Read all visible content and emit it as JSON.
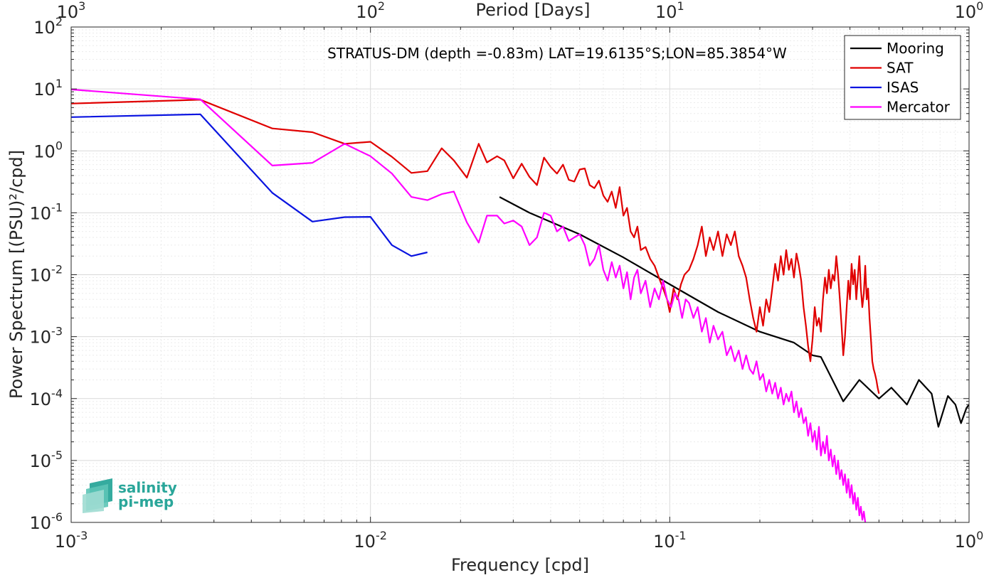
{
  "chart_data": {
    "type": "line",
    "title": "STRATUS-DM (depth =-0.83m) LAT=19.6135°S;LON=85.3854°W",
    "xlabel": "Frequency [cpd]",
    "ylabel": "Power Spectrum [(PSU)²/cpd]",
    "top_axis_label": "Period [Days]",
    "x_scale": "log",
    "y_scale": "log",
    "xlim": [
      0.001,
      1
    ],
    "ylim": [
      1e-06,
      100
    ],
    "grid": true,
    "legend_position": "top-right",
    "x_ticks": [
      {
        "base": "10",
        "exp": "-3"
      },
      {
        "base": "10",
        "exp": "-2"
      },
      {
        "base": "10",
        "exp": "-1"
      },
      {
        "base": "10",
        "exp": "0"
      }
    ],
    "top_ticks": [
      {
        "base": "10",
        "exp": "3"
      },
      {
        "base": "10",
        "exp": "2"
      },
      {
        "base": "10",
        "exp": "1"
      },
      {
        "base": "10",
        "exp": "0"
      }
    ],
    "y_ticks": [
      {
        "base": "10",
        "exp": "2"
      },
      {
        "base": "10",
        "exp": "1"
      },
      {
        "base": "10",
        "exp": "0"
      },
      {
        "base": "10",
        "exp": "-1"
      },
      {
        "base": "10",
        "exp": "-2"
      },
      {
        "base": "10",
        "exp": "-3"
      },
      {
        "base": "10",
        "exp": "-4"
      },
      {
        "base": "10",
        "exp": "-5"
      },
      {
        "base": "10",
        "exp": "-6"
      }
    ],
    "series": [
      {
        "name": "Mooring",
        "color": "#000000",
        "points": [
          [
            0.027,
            0.18
          ],
          [
            0.034,
            0.1
          ],
          [
            0.05,
            0.045
          ],
          [
            0.07,
            0.019
          ],
          [
            0.1,
            0.007
          ],
          [
            0.145,
            0.0025
          ],
          [
            0.2,
            0.0012
          ],
          [
            0.26,
            0.0008
          ],
          [
            0.3,
            0.0005
          ],
          [
            0.32,
            0.00047
          ],
          [
            0.38,
            9e-05
          ],
          [
            0.43,
            0.0002
          ],
          [
            0.5,
            0.0001
          ],
          [
            0.55,
            0.00015
          ],
          [
            0.62,
            8e-05
          ],
          [
            0.68,
            0.0002
          ],
          [
            0.75,
            0.00012
          ],
          [
            0.79,
            3.5e-05
          ],
          [
            0.85,
            0.00011
          ],
          [
            0.9,
            8e-05
          ],
          [
            0.94,
            4e-05
          ],
          [
            0.98,
            7e-05
          ],
          [
            1.0,
            8e-05
          ]
        ]
      },
      {
        "name": "SAT",
        "color": "#e00000",
        "points": [
          [
            0.001,
            5.8
          ],
          [
            0.0027,
            6.7
          ],
          [
            0.0047,
            2.3
          ],
          [
            0.0064,
            2.0
          ],
          [
            0.0082,
            1.3
          ],
          [
            0.01,
            1.4
          ],
          [
            0.0118,
            0.8
          ],
          [
            0.0137,
            0.44
          ],
          [
            0.0155,
            0.47
          ],
          [
            0.0173,
            1.1
          ],
          [
            0.019,
            0.7
          ],
          [
            0.021,
            0.37
          ],
          [
            0.023,
            1.3
          ],
          [
            0.0245,
            0.65
          ],
          [
            0.0265,
            0.82
          ],
          [
            0.028,
            0.7
          ],
          [
            0.03,
            0.36
          ],
          [
            0.032,
            0.62
          ],
          [
            0.034,
            0.38
          ],
          [
            0.036,
            0.28
          ],
          [
            0.038,
            0.78
          ],
          [
            0.04,
            0.55
          ],
          [
            0.042,
            0.43
          ],
          [
            0.044,
            0.6
          ],
          [
            0.046,
            0.34
          ],
          [
            0.048,
            0.32
          ],
          [
            0.05,
            0.5
          ],
          [
            0.052,
            0.52
          ],
          [
            0.054,
            0.28
          ],
          [
            0.056,
            0.25
          ],
          [
            0.058,
            0.33
          ],
          [
            0.06,
            0.19
          ],
          [
            0.062,
            0.15
          ],
          [
            0.064,
            0.22
          ],
          [
            0.066,
            0.12
          ],
          [
            0.068,
            0.26
          ],
          [
            0.07,
            0.09
          ],
          [
            0.072,
            0.12
          ],
          [
            0.074,
            0.05
          ],
          [
            0.076,
            0.04
          ],
          [
            0.078,
            0.06
          ],
          [
            0.08,
            0.025
          ],
          [
            0.083,
            0.028
          ],
          [
            0.086,
            0.018
          ],
          [
            0.089,
            0.014
          ],
          [
            0.092,
            0.009
          ],
          [
            0.095,
            0.006
          ],
          [
            0.098,
            0.004
          ],
          [
            0.1,
            0.0025
          ],
          [
            0.103,
            0.006
          ],
          [
            0.106,
            0.004
          ],
          [
            0.109,
            0.007
          ],
          [
            0.112,
            0.01
          ],
          [
            0.116,
            0.012
          ],
          [
            0.12,
            0.018
          ],
          [
            0.124,
            0.03
          ],
          [
            0.128,
            0.06
          ],
          [
            0.132,
            0.02
          ],
          [
            0.136,
            0.04
          ],
          [
            0.14,
            0.025
          ],
          [
            0.145,
            0.05
          ],
          [
            0.15,
            0.02
          ],
          [
            0.155,
            0.045
          ],
          [
            0.16,
            0.03
          ],
          [
            0.165,
            0.05
          ],
          [
            0.17,
            0.02
          ],
          [
            0.175,
            0.014
          ],
          [
            0.18,
            0.009
          ],
          [
            0.185,
            0.004
          ],
          [
            0.19,
            0.002
          ],
          [
            0.195,
            0.0012
          ],
          [
            0.2,
            0.003
          ],
          [
            0.205,
            0.0015
          ],
          [
            0.21,
            0.004
          ],
          [
            0.215,
            0.0025
          ],
          [
            0.22,
            0.006
          ],
          [
            0.225,
            0.015
          ],
          [
            0.23,
            0.008
          ],
          [
            0.235,
            0.02
          ],
          [
            0.24,
            0.01
          ],
          [
            0.245,
            0.025
          ],
          [
            0.25,
            0.012
          ],
          [
            0.255,
            0.018
          ],
          [
            0.26,
            0.009
          ],
          [
            0.265,
            0.022
          ],
          [
            0.27,
            0.014
          ],
          [
            0.275,
            0.008
          ],
          [
            0.28,
            0.003
          ],
          [
            0.285,
            0.0015
          ],
          [
            0.29,
            0.0007
          ],
          [
            0.295,
            0.0004
          ],
          [
            0.3,
            0.0009
          ],
          [
            0.305,
            0.003
          ],
          [
            0.31,
            0.0015
          ],
          [
            0.315,
            0.002
          ],
          [
            0.32,
            0.0012
          ],
          [
            0.325,
            0.004
          ],
          [
            0.33,
            0.009
          ],
          [
            0.335,
            0.005
          ],
          [
            0.34,
            0.012
          ],
          [
            0.345,
            0.006
          ],
          [
            0.35,
            0.01
          ],
          [
            0.355,
            0.008
          ],
          [
            0.36,
            0.02
          ],
          [
            0.365,
            0.01
          ],
          [
            0.37,
            0.004
          ],
          [
            0.375,
            0.0015
          ],
          [
            0.38,
            0.0005
          ],
          [
            0.385,
            0.001
          ],
          [
            0.39,
            0.003
          ],
          [
            0.395,
            0.008
          ],
          [
            0.4,
            0.004
          ],
          [
            0.405,
            0.015
          ],
          [
            0.41,
            0.007
          ],
          [
            0.415,
            0.012
          ],
          [
            0.42,
            0.004
          ],
          [
            0.425,
            0.009
          ],
          [
            0.43,
            0.02
          ],
          [
            0.435,
            0.006
          ],
          [
            0.44,
            0.003
          ],
          [
            0.445,
            0.005
          ],
          [
            0.45,
            0.014
          ],
          [
            0.455,
            0.004
          ],
          [
            0.46,
            0.006
          ],
          [
            0.465,
            0.002
          ],
          [
            0.47,
            0.0009
          ],
          [
            0.475,
            0.0004
          ],
          [
            0.48,
            0.0003
          ],
          [
            0.485,
            0.00025
          ],
          [
            0.49,
            0.0002
          ],
          [
            0.495,
            0.00015
          ],
          [
            0.5,
            0.00012
          ]
        ]
      },
      {
        "name": "ISAS",
        "color": "#0a14e0",
        "points": [
          [
            0.001,
            3.5
          ],
          [
            0.0027,
            3.9
          ],
          [
            0.0047,
            0.21
          ],
          [
            0.0064,
            0.072
          ],
          [
            0.0082,
            0.085
          ],
          [
            0.01,
            0.086
          ],
          [
            0.0118,
            0.03
          ],
          [
            0.0137,
            0.02
          ],
          [
            0.0155,
            0.023
          ]
        ]
      },
      {
        "name": "Mercator",
        "color": "#ff00ff",
        "points": [
          [
            0.001,
            9.8
          ],
          [
            0.0027,
            6.8
          ],
          [
            0.0047,
            0.58
          ],
          [
            0.0064,
            0.64
          ],
          [
            0.0082,
            1.3
          ],
          [
            0.01,
            0.82
          ],
          [
            0.0118,
            0.43
          ],
          [
            0.0137,
            0.18
          ],
          [
            0.0155,
            0.16
          ],
          [
            0.0173,
            0.2
          ],
          [
            0.019,
            0.22
          ],
          [
            0.021,
            0.07
          ],
          [
            0.023,
            0.033
          ],
          [
            0.0245,
            0.09
          ],
          [
            0.0265,
            0.09
          ],
          [
            0.028,
            0.067
          ],
          [
            0.03,
            0.075
          ],
          [
            0.032,
            0.06
          ],
          [
            0.034,
            0.03
          ],
          [
            0.036,
            0.04
          ],
          [
            0.038,
            0.1
          ],
          [
            0.04,
            0.09
          ],
          [
            0.042,
            0.05
          ],
          [
            0.044,
            0.06
          ],
          [
            0.046,
            0.035
          ],
          [
            0.048,
            0.04
          ],
          [
            0.05,
            0.045
          ],
          [
            0.052,
            0.03
          ],
          [
            0.054,
            0.014
          ],
          [
            0.056,
            0.018
          ],
          [
            0.058,
            0.03
          ],
          [
            0.06,
            0.012
          ],
          [
            0.062,
            0.008
          ],
          [
            0.064,
            0.016
          ],
          [
            0.066,
            0.009
          ],
          [
            0.068,
            0.014
          ],
          [
            0.07,
            0.006
          ],
          [
            0.072,
            0.011
          ],
          [
            0.074,
            0.004
          ],
          [
            0.076,
            0.009
          ],
          [
            0.078,
            0.012
          ],
          [
            0.08,
            0.005
          ],
          [
            0.083,
            0.008
          ],
          [
            0.086,
            0.003
          ],
          [
            0.089,
            0.006
          ],
          [
            0.092,
            0.004
          ],
          [
            0.095,
            0.008
          ],
          [
            0.098,
            0.004
          ],
          [
            0.101,
            0.003
          ],
          [
            0.104,
            0.005
          ],
          [
            0.107,
            0.004
          ],
          [
            0.11,
            0.002
          ],
          [
            0.113,
            0.004
          ],
          [
            0.116,
            0.0035
          ],
          [
            0.12,
            0.002
          ],
          [
            0.124,
            0.003
          ],
          [
            0.128,
            0.0012
          ],
          [
            0.132,
            0.002
          ],
          [
            0.136,
            0.0008
          ],
          [
            0.14,
            0.0015
          ],
          [
            0.145,
            0.0009
          ],
          [
            0.15,
            0.0012
          ],
          [
            0.155,
            0.0005
          ],
          [
            0.16,
            0.0007
          ],
          [
            0.165,
            0.0004
          ],
          [
            0.17,
            0.0006
          ],
          [
            0.175,
            0.0003
          ],
          [
            0.18,
            0.0005
          ],
          [
            0.185,
            0.0003
          ],
          [
            0.19,
            0.00025
          ],
          [
            0.195,
            0.0004
          ],
          [
            0.2,
            0.0002
          ],
          [
            0.205,
            0.00025
          ],
          [
            0.21,
            0.00013
          ],
          [
            0.215,
            0.0002
          ],
          [
            0.22,
            0.00012
          ],
          [
            0.225,
            0.00018
          ],
          [
            0.23,
            0.0001
          ],
          [
            0.235,
            0.00015
          ],
          [
            0.24,
            8e-05
          ],
          [
            0.245,
            0.00012
          ],
          [
            0.25,
            9e-05
          ],
          [
            0.255,
            0.00013
          ],
          [
            0.26,
            6e-05
          ],
          [
            0.265,
            9e-05
          ],
          [
            0.27,
            5e-05
          ],
          [
            0.275,
            7e-05
          ],
          [
            0.28,
            4e-05
          ],
          [
            0.285,
            5e-05
          ],
          [
            0.29,
            2.5e-05
          ],
          [
            0.295,
            4e-05
          ],
          [
            0.3,
            2e-05
          ],
          [
            0.305,
            3e-05
          ],
          [
            0.31,
            1.5e-05
          ],
          [
            0.315,
            3.5e-05
          ],
          [
            0.32,
            1.2e-05
          ],
          [
            0.325,
            2e-05
          ],
          [
            0.33,
            1.3e-05
          ],
          [
            0.335,
            2.5e-05
          ],
          [
            0.34,
            1e-05
          ],
          [
            0.345,
            1.5e-05
          ],
          [
            0.35,
            8e-06
          ],
          [
            0.355,
            1.2e-05
          ],
          [
            0.36,
            6e-06
          ],
          [
            0.365,
            1e-05
          ],
          [
            0.37,
            5e-06
          ],
          [
            0.375,
            7e-06
          ],
          [
            0.38,
            4e-06
          ],
          [
            0.385,
            6e-06
          ],
          [
            0.39,
            3e-06
          ],
          [
            0.395,
            5e-06
          ],
          [
            0.4,
            2.5e-06
          ],
          [
            0.405,
            4e-06
          ],
          [
            0.41,
            2e-06
          ],
          [
            0.415,
            3e-06
          ],
          [
            0.42,
            1.6e-06
          ],
          [
            0.425,
            2.5e-06
          ],
          [
            0.43,
            1.3e-06
          ],
          [
            0.435,
            1.8e-06
          ],
          [
            0.44,
            1.1e-06
          ],
          [
            0.445,
            1.5e-06
          ],
          [
            0.45,
            1e-06
          ]
        ]
      }
    ]
  },
  "logo": {
    "line1": "salinity",
    "line2": "pi-mep",
    "colors": [
      "#2aa69a",
      "#5cc4b6",
      "#9fdcd2"
    ]
  }
}
